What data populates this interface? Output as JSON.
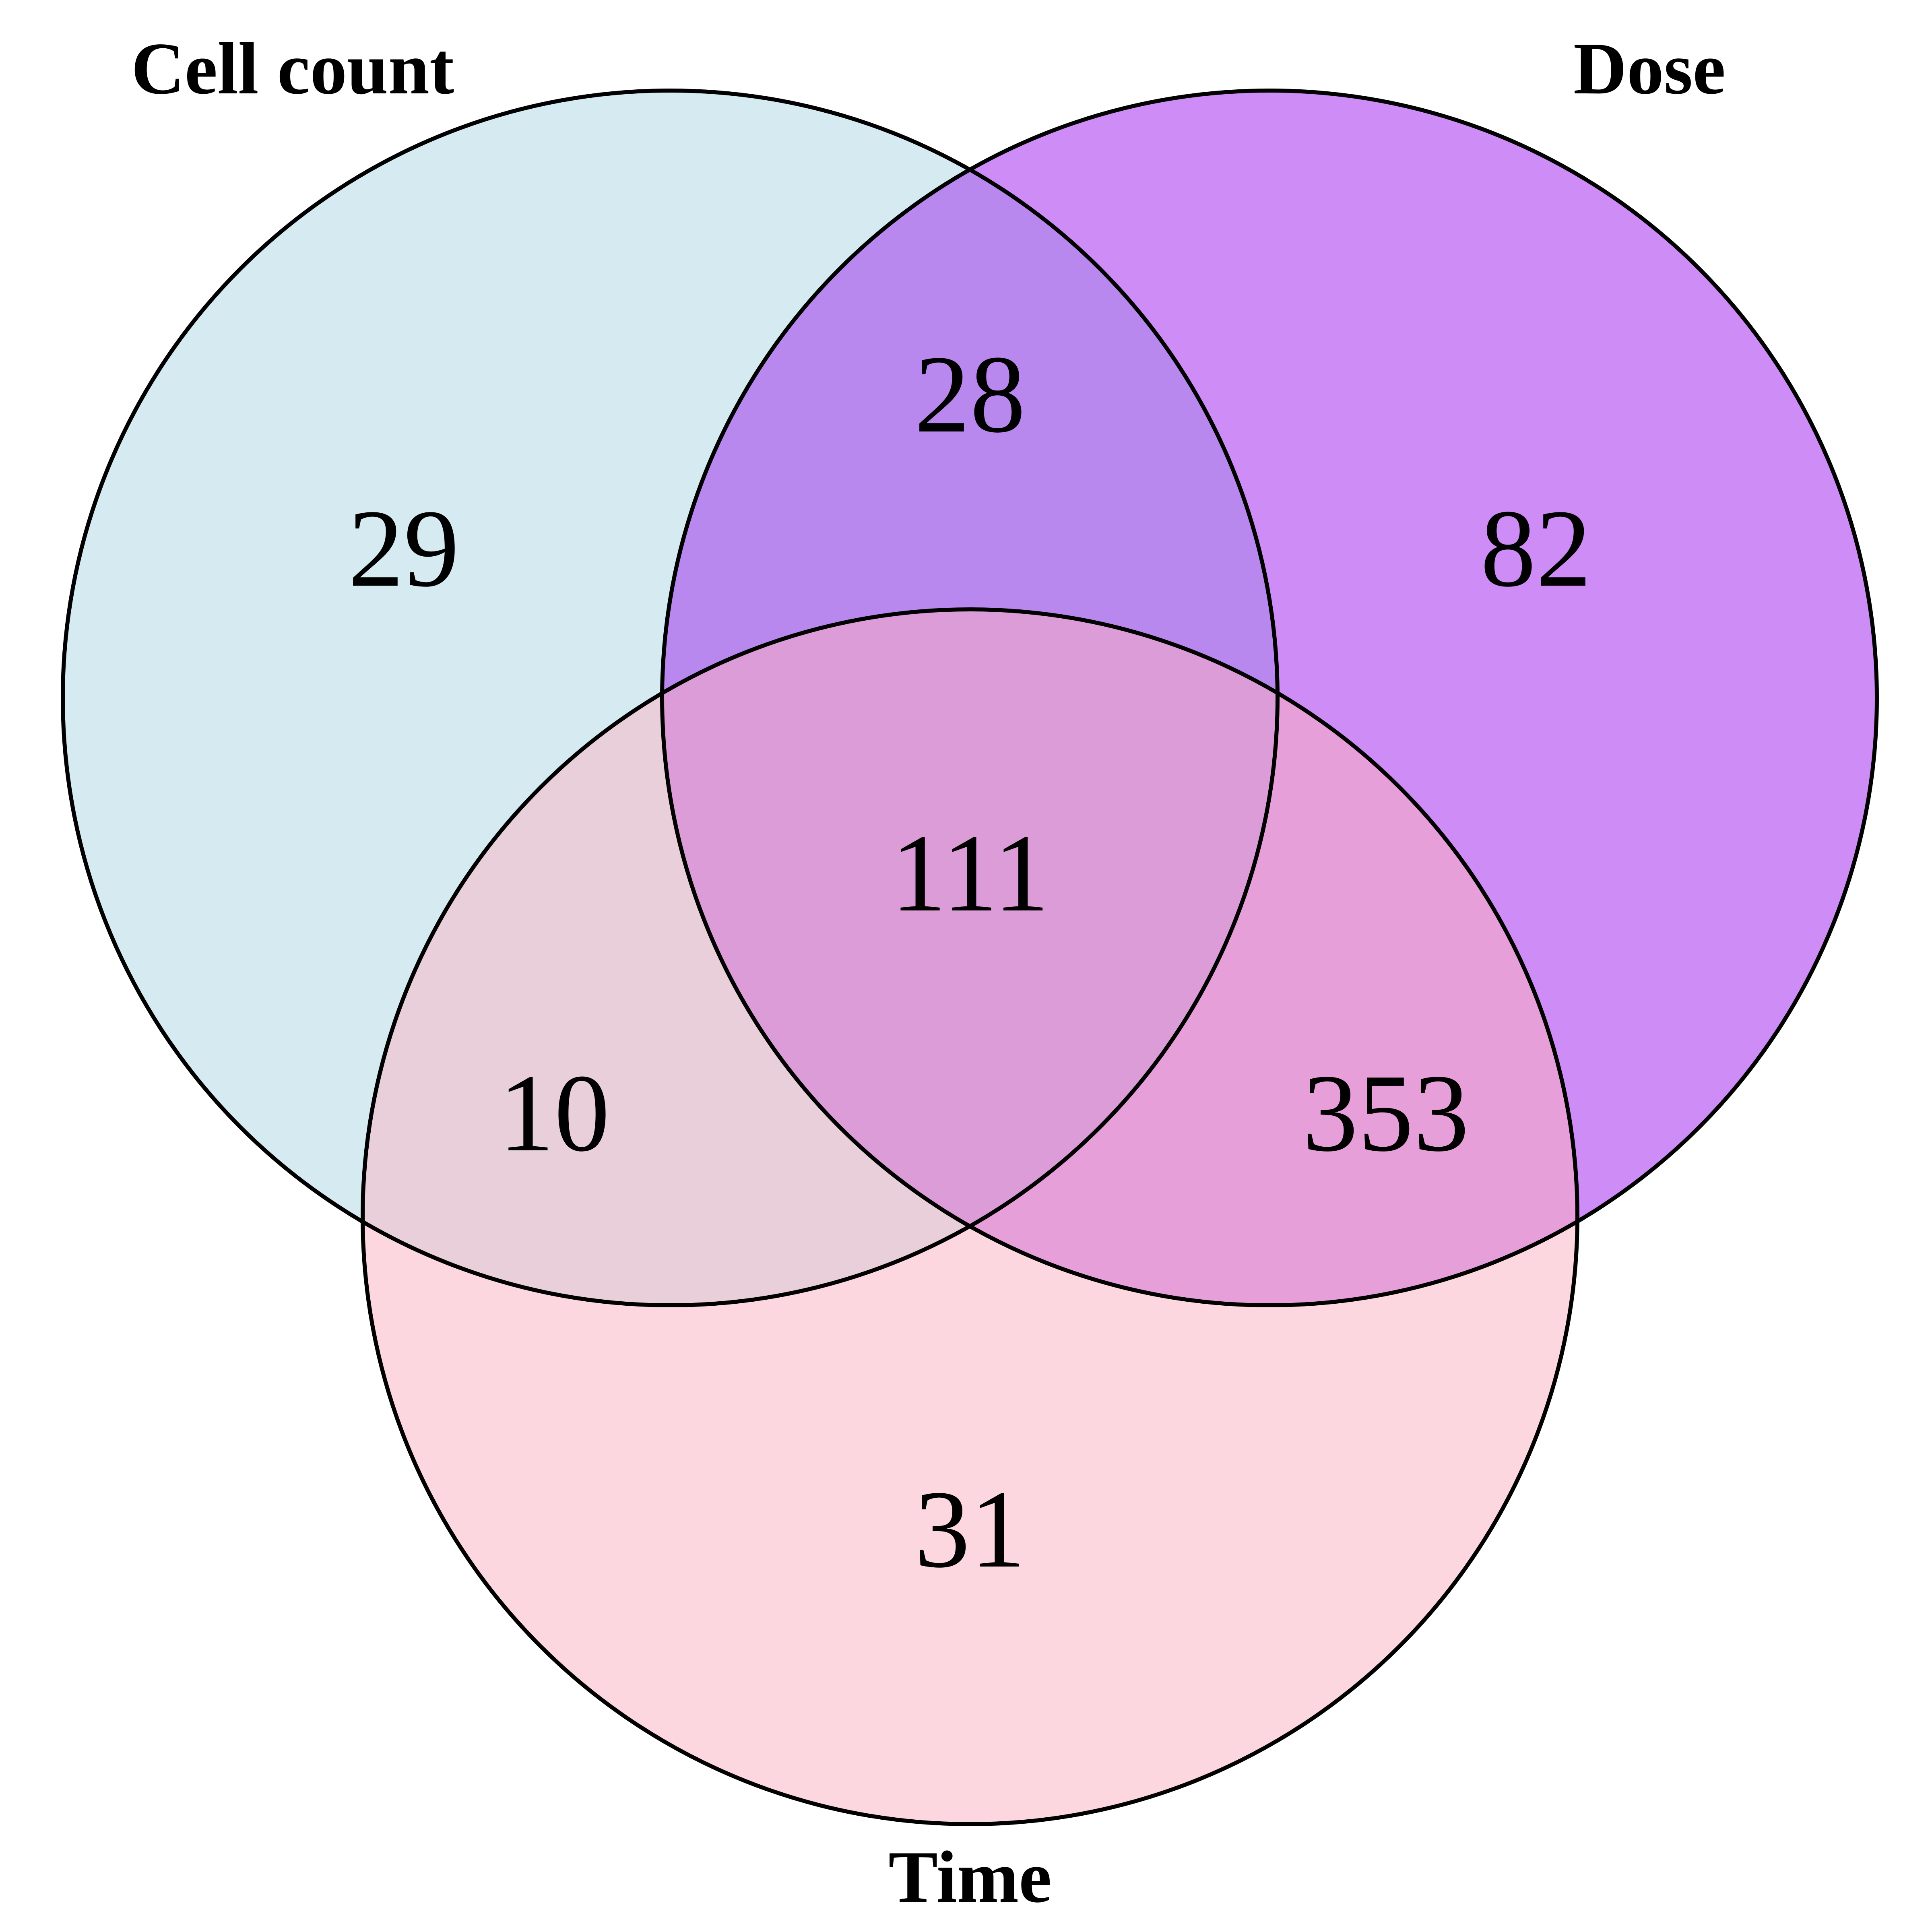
{
  "sets": [
    {
      "key": "cell_count",
      "label": "Cell count",
      "color": "#add8e6"
    },
    {
      "key": "dose",
      "label": "Dose",
      "color": "#a020f0"
    },
    {
      "key": "time",
      "label": "Time",
      "color": "#ffb6c1"
    }
  ],
  "regions": {
    "cell_count_only": "29",
    "dose_only": "82",
    "time_only": "31",
    "cell_count_dose": "28",
    "cell_count_time": "10",
    "dose_time": "353",
    "all_three": "111"
  },
  "colors": {
    "cell_count_fill": "#d6eaf1",
    "dose_fill": "#ce8cf6",
    "time_fill": "#fdd7df",
    "cell_count_dose_fill": "#b888ee",
    "cell_count_time_fill": "#e9cfd9",
    "dose_time_fill": "#e79fd9",
    "all_three_fill": "#dc9cd7",
    "outline": "#000000"
  }
}
